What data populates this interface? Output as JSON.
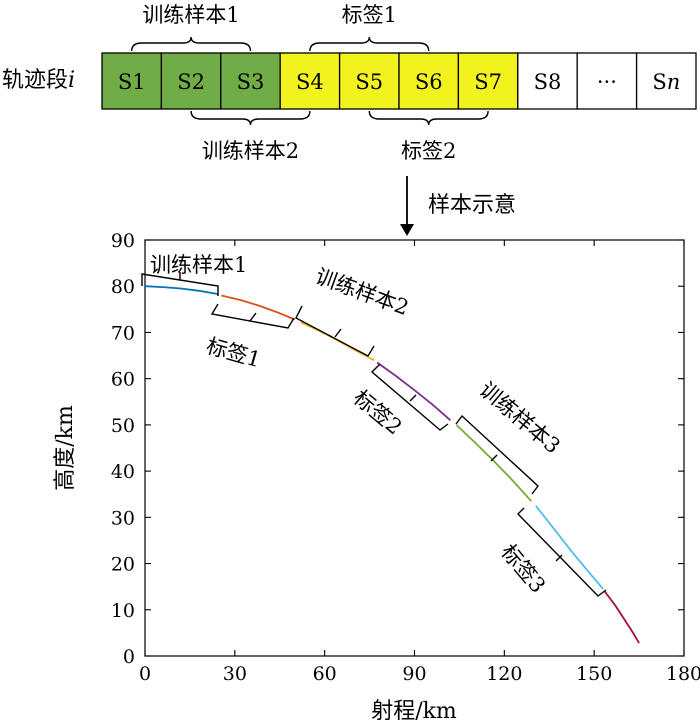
{
  "diagram": {
    "segment_label": "轨迹段",
    "segment_label_var": "i",
    "segments": [
      {
        "label": "S1",
        "color": "#70AD47"
      },
      {
        "label": "S2",
        "color": "#70AD47"
      },
      {
        "label": "S3",
        "color": "#70AD47"
      },
      {
        "label": "S4",
        "color": "#F2F21E"
      },
      {
        "label": "S5",
        "color": "#F2F21E"
      },
      {
        "label": "S6",
        "color": "#F2F21E"
      },
      {
        "label": "S7",
        "color": "#F2F21E"
      },
      {
        "label": "S8",
        "color": "#FFFFFF"
      },
      {
        "label": "···",
        "color": "#FFFFFF"
      },
      {
        "label": "S",
        "label_var": "n",
        "color": "#FFFFFF"
      }
    ],
    "top_brackets": [
      {
        "text": "训练样本1",
        "from": 0,
        "to": 2
      },
      {
        "text": "标签1",
        "from": 3,
        "to": 5
      }
    ],
    "bottom_brackets": [
      {
        "text": "训练样本2",
        "from": 1,
        "to": 3
      },
      {
        "text": "标签2",
        "from": 4,
        "to": 6
      }
    ],
    "arrow_label": "样本示意"
  },
  "chart_data": {
    "type": "line",
    "xlabel": "射程/km",
    "ylabel": "高度/km",
    "xlim": [
      0,
      180
    ],
    "ylim": [
      0,
      90
    ],
    "xticks": [
      0,
      30,
      60,
      90,
      120,
      150,
      180
    ],
    "yticks": [
      0,
      10,
      20,
      30,
      40,
      50,
      60,
      70,
      80,
      90
    ],
    "grid": false,
    "series": [
      {
        "color": "#0072BD",
        "x": [
          0,
          6,
          12,
          18,
          24.5
        ],
        "y": [
          80,
          79.8,
          79.5,
          79.0,
          78.3
        ]
      },
      {
        "color": "#D95319",
        "x": [
          25.5,
          32,
          38,
          44,
          50
        ],
        "y": [
          78.0,
          77.0,
          75.8,
          74.4,
          72.8
        ]
      },
      {
        "color": "#EDB120",
        "x": [
          52,
          58,
          64,
          70,
          76.5
        ],
        "y": [
          72.2,
          70.4,
          68.4,
          66.2,
          64.0
        ]
      },
      {
        "color": "#7E2F8E",
        "x": [
          77.5,
          84,
          90,
          96,
          102
        ],
        "y": [
          63.5,
          60.5,
          57.5,
          54.4,
          51.0
        ]
      },
      {
        "color": "#77AC30",
        "x": [
          104,
          110,
          116,
          122,
          129
        ],
        "y": [
          50.0,
          46.3,
          42.5,
          38.5,
          33.5
        ]
      },
      {
        "color": "#4DBEEE",
        "x": [
          130.5,
          136,
          142,
          148,
          153
        ],
        "y": [
          32.5,
          28.0,
          23.0,
          18.3,
          14.5
        ]
      },
      {
        "color": "#A2142F",
        "x": [
          153.5,
          157,
          160,
          163,
          165
        ],
        "y": [
          14.0,
          11.0,
          8.0,
          5.0,
          2.8
        ]
      }
    ],
    "annotations": [
      {
        "text": "训练样本1"
      },
      {
        "text": "标签1"
      },
      {
        "text": "训练样本2"
      },
      {
        "text": "标签2"
      },
      {
        "text": "训练样本3"
      },
      {
        "text": "标签3"
      }
    ]
  }
}
